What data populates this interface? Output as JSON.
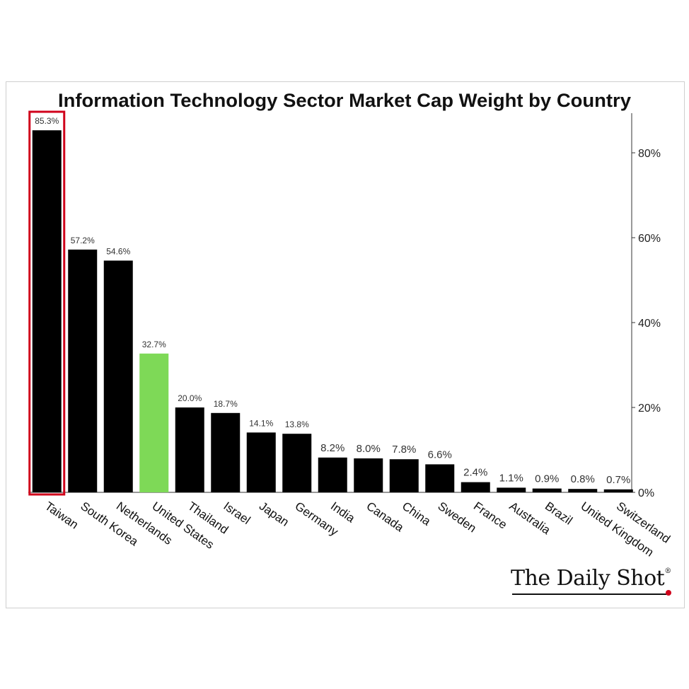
{
  "chart_data": {
    "type": "bar",
    "title": "Information Technology Sector Market Cap Weight by Country",
    "xlabel": "",
    "ylabel": "",
    "categories": [
      "Taiwan",
      "South Korea",
      "Netherlands",
      "United States",
      "Thailand",
      "Israel",
      "Japan",
      "Germany",
      "India",
      "Canada",
      "China",
      "Sweden",
      "France",
      "Australia",
      "Brazil",
      "United Kingdom",
      "Switzerland"
    ],
    "values": [
      85.3,
      57.2,
      54.6,
      32.7,
      20.0,
      18.7,
      14.1,
      13.8,
      8.2,
      8.0,
      7.8,
      6.6,
      2.4,
      1.1,
      0.9,
      0.8,
      0.7
    ],
    "data_labels": [
      "85.3%",
      "57.2%",
      "54.6%",
      "32.7%",
      "20.0%",
      "18.7%",
      "14.1%",
      "13.8%",
      "8.2%",
      "8.0%",
      "7.8%",
      "6.6%",
      "2.4%",
      "1.1%",
      "0.9%",
      "0.8%",
      "0.7%"
    ],
    "y_ticks": [
      0,
      20,
      40,
      60,
      80
    ],
    "y_tick_labels": [
      "0%",
      "20%",
      "40%",
      "60%",
      "80%"
    ],
    "ylim": [
      0,
      90
    ],
    "y_axis_side": "right",
    "grid": false,
    "legend": "none",
    "colors": {
      "default": "#000000",
      "highlight": "#7ed957",
      "outline": "#d0021b"
    },
    "highlighted_category": "United States",
    "outlined_category": "Taiwan"
  },
  "source": {
    "brand": "The Daily Shot",
    "reg_mark": "®"
  }
}
